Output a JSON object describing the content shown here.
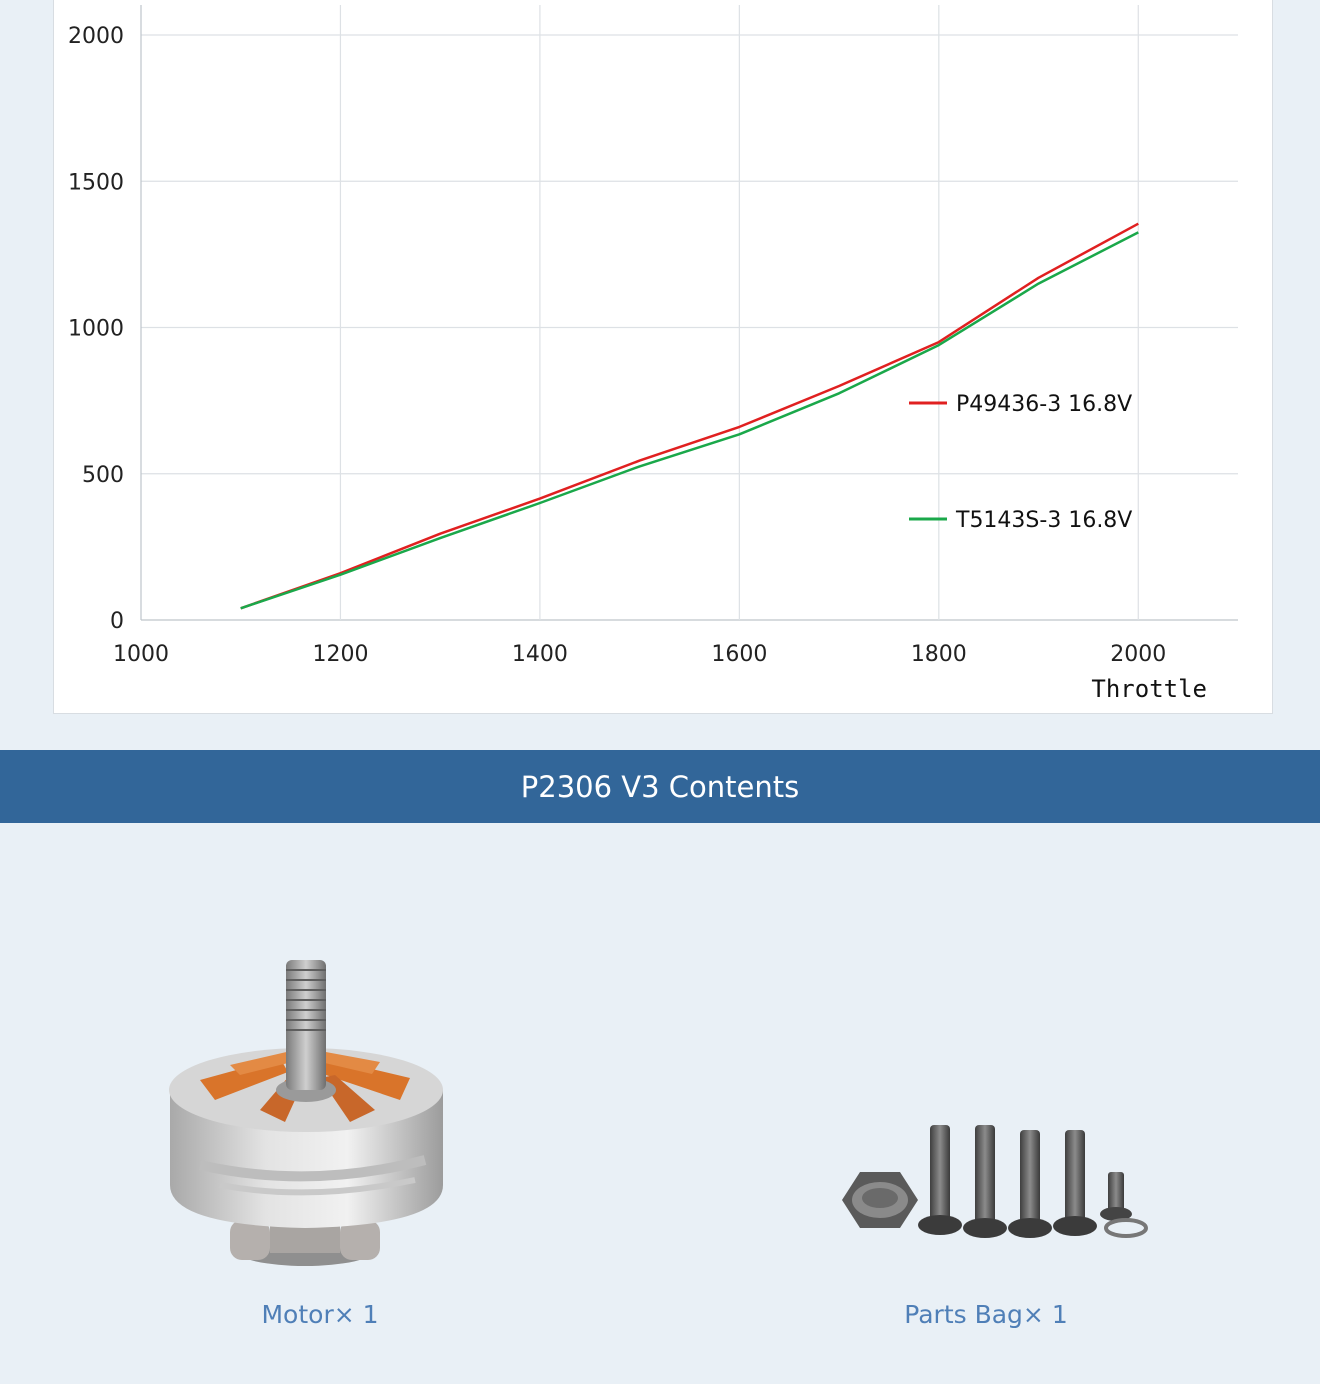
{
  "chart_data": {
    "type": "line",
    "xlabel": "Throttle",
    "ylabel": "",
    "xlim": [
      1000,
      2100
    ],
    "ylim": [
      0,
      2000
    ],
    "x_ticks": [
      1000,
      1200,
      1400,
      1600,
      1800,
      2000
    ],
    "y_ticks": [
      0,
      500,
      1000,
      1500,
      2000
    ],
    "grid": true,
    "legend_position": "right",
    "series": [
      {
        "name": "P49436-3 16.8V",
        "color": "#e02020",
        "x": [
          1100,
          1200,
          1300,
          1400,
          1500,
          1600,
          1700,
          1800,
          1900,
          2000
        ],
        "y": [
          40,
          160,
          295,
          415,
          545,
          660,
          800,
          950,
          1170,
          1355
        ]
      },
      {
        "name": "T5143S-3 16.8V",
        "color": "#1aa84a",
        "x": [
          1100,
          1200,
          1300,
          1400,
          1500,
          1600,
          1700,
          1800,
          1900,
          2000
        ],
        "y": [
          40,
          155,
          280,
          400,
          525,
          635,
          775,
          940,
          1150,
          1325
        ]
      }
    ]
  },
  "banner": {
    "title": "P2306 V3 Contents"
  },
  "items": [
    {
      "caption": "Motor× 1",
      "icon": "motor-image"
    },
    {
      "caption": "Parts Bag× 1",
      "icon": "screws-image"
    }
  ],
  "colors": {
    "banner_bg": "#326699",
    "caption": "#4f7fb7",
    "motor_accent": "#d9742a"
  }
}
